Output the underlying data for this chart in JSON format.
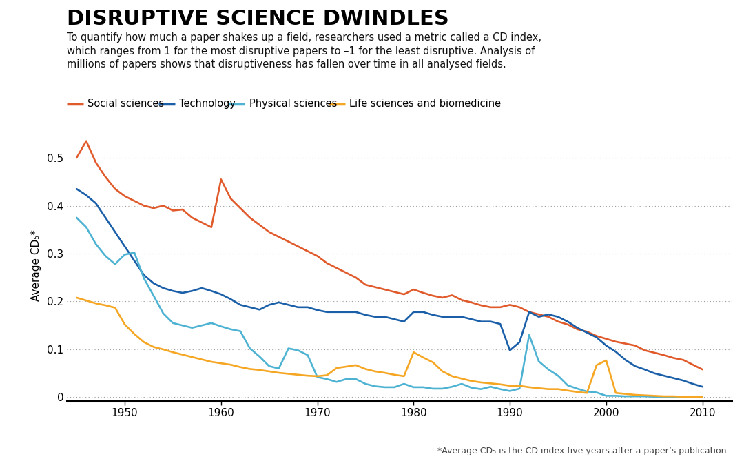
{
  "title": "DISRUPTIVE SCIENCE DWINDLES",
  "subtitle": "To quantify how much a paper shakes up a field, researchers used a metric called a CD index,\nwhich ranges from 1 for the most disruptive papers to –1 for the least disruptive. Analysis of\nmillions of papers shows that disruptiveness has fallen over time in all analysed fields.",
  "footnote": "*Average CD₅ is the CD index five years after a paper’s publication.",
  "ylabel": "Average CD₅*",
  "ylim": [
    -0.008,
    0.56
  ],
  "yticks": [
    0,
    0.1,
    0.2,
    0.3,
    0.4,
    0.5
  ],
  "xlim": [
    1944,
    2013
  ],
  "xticks": [
    1950,
    1960,
    1970,
    1980,
    1990,
    2000,
    2010
  ],
  "background_color": "#ffffff",
  "grid_color": "#999999",
  "series": [
    {
      "label": "Social sciences",
      "color": "#e05a2b",
      "years": [
        1945,
        1946,
        1947,
        1948,
        1949,
        1950,
        1951,
        1952,
        1953,
        1954,
        1955,
        1956,
        1957,
        1958,
        1959,
        1960,
        1961,
        1962,
        1963,
        1964,
        1965,
        1966,
        1967,
        1968,
        1969,
        1970,
        1971,
        1972,
        1973,
        1974,
        1975,
        1976,
        1977,
        1978,
        1979,
        1980,
        1981,
        1982,
        1983,
        1984,
        1985,
        1986,
        1987,
        1988,
        1989,
        1990,
        1991,
        1992,
        1993,
        1994,
        1995,
        1996,
        1997,
        1998,
        1999,
        2000,
        2001,
        2002,
        2003,
        2004,
        2005,
        2006,
        2007,
        2008,
        2009,
        2010
      ],
      "values": [
        0.5,
        0.535,
        0.49,
        0.46,
        0.435,
        0.42,
        0.41,
        0.4,
        0.395,
        0.4,
        0.39,
        0.392,
        0.375,
        0.365,
        0.355,
        0.455,
        0.415,
        0.395,
        0.375,
        0.36,
        0.345,
        0.335,
        0.325,
        0.315,
        0.305,
        0.295,
        0.28,
        0.27,
        0.26,
        0.25,
        0.235,
        0.23,
        0.225,
        0.22,
        0.215,
        0.225,
        0.218,
        0.212,
        0.208,
        0.213,
        0.203,
        0.198,
        0.192,
        0.188,
        0.188,
        0.193,
        0.188,
        0.178,
        0.173,
        0.168,
        0.158,
        0.152,
        0.142,
        0.137,
        0.128,
        0.122,
        0.116,
        0.112,
        0.108,
        0.098,
        0.093,
        0.088,
        0.082,
        0.078,
        0.068,
        0.058
      ]
    },
    {
      "label": "Technology",
      "color": "#1a5fa8",
      "years": [
        1945,
        1946,
        1947,
        1948,
        1949,
        1950,
        1951,
        1952,
        1953,
        1954,
        1955,
        1956,
        1957,
        1958,
        1959,
        1960,
        1961,
        1962,
        1963,
        1964,
        1965,
        1966,
        1967,
        1968,
        1969,
        1970,
        1971,
        1972,
        1973,
        1974,
        1975,
        1976,
        1977,
        1978,
        1979,
        1980,
        1981,
        1982,
        1983,
        1984,
        1985,
        1986,
        1987,
        1988,
        1989,
        1990,
        1991,
        1992,
        1993,
        1994,
        1995,
        1996,
        1997,
        1998,
        1999,
        2000,
        2001,
        2002,
        2003,
        2004,
        2005,
        2006,
        2007,
        2008,
        2009,
        2010
      ],
      "values": [
        0.435,
        0.422,
        0.405,
        0.375,
        0.345,
        0.315,
        0.285,
        0.255,
        0.238,
        0.228,
        0.222,
        0.218,
        0.222,
        0.228,
        0.222,
        0.215,
        0.205,
        0.193,
        0.188,
        0.183,
        0.193,
        0.198,
        0.193,
        0.188,
        0.188,
        0.182,
        0.178,
        0.178,
        0.178,
        0.178,
        0.172,
        0.168,
        0.168,
        0.163,
        0.158,
        0.178,
        0.178,
        0.172,
        0.168,
        0.168,
        0.168,
        0.163,
        0.158,
        0.158,
        0.153,
        0.098,
        0.115,
        0.178,
        0.168,
        0.173,
        0.168,
        0.158,
        0.145,
        0.135,
        0.125,
        0.108,
        0.095,
        0.078,
        0.065,
        0.058,
        0.05,
        0.045,
        0.04,
        0.035,
        0.028,
        0.022
      ]
    },
    {
      "label": "Physical sciences",
      "color": "#4eb3d3",
      "years": [
        1945,
        1946,
        1947,
        1948,
        1949,
        1950,
        1951,
        1952,
        1953,
        1954,
        1955,
        1956,
        1957,
        1958,
        1959,
        1960,
        1961,
        1962,
        1963,
        1964,
        1965,
        1966,
        1967,
        1968,
        1969,
        1970,
        1971,
        1972,
        1973,
        1974,
        1975,
        1976,
        1977,
        1978,
        1979,
        1980,
        1981,
        1982,
        1983,
        1984,
        1985,
        1986,
        1987,
        1988,
        1989,
        1990,
        1991,
        1992,
        1993,
        1994,
        1995,
        1996,
        1997,
        1998,
        1999,
        2000,
        2001,
        2002,
        2003,
        2004,
        2005,
        2006,
        2007,
        2008,
        2009,
        2010
      ],
      "values": [
        0.375,
        0.355,
        0.32,
        0.295,
        0.278,
        0.298,
        0.302,
        0.248,
        0.212,
        0.175,
        0.155,
        0.15,
        0.145,
        0.15,
        0.155,
        0.148,
        0.142,
        0.138,
        0.102,
        0.085,
        0.065,
        0.06,
        0.102,
        0.098,
        0.088,
        0.042,
        0.038,
        0.032,
        0.038,
        0.038,
        0.028,
        0.023,
        0.021,
        0.021,
        0.028,
        0.021,
        0.021,
        0.018,
        0.018,
        0.022,
        0.028,
        0.02,
        0.017,
        0.022,
        0.017,
        0.013,
        0.018,
        0.13,
        0.075,
        0.058,
        0.045,
        0.025,
        0.018,
        0.012,
        0.01,
        0.003,
        0.003,
        0.002,
        0.002,
        0.002,
        0.001,
        0.001,
        0.001,
        0.001,
        0.0,
        0.0
      ]
    },
    {
      "label": "Life sciences and biomedicine",
      "color": "#f5a623",
      "years": [
        1945,
        1946,
        1947,
        1948,
        1949,
        1950,
        1951,
        1952,
        1953,
        1954,
        1955,
        1956,
        1957,
        1958,
        1959,
        1960,
        1961,
        1962,
        1963,
        1964,
        1965,
        1966,
        1967,
        1968,
        1969,
        1970,
        1971,
        1972,
        1973,
        1974,
        1975,
        1976,
        1977,
        1978,
        1979,
        1980,
        1981,
        1982,
        1983,
        1984,
        1985,
        1986,
        1987,
        1988,
        1989,
        1990,
        1991,
        1992,
        1993,
        1994,
        1995,
        1996,
        1997,
        1998,
        1999,
        2000,
        2001,
        2002,
        2003,
        2004,
        2005,
        2006,
        2007,
        2008,
        2009,
        2010
      ],
      "values": [
        0.208,
        0.202,
        0.196,
        0.192,
        0.187,
        0.152,
        0.132,
        0.115,
        0.105,
        0.1,
        0.094,
        0.089,
        0.084,
        0.079,
        0.074,
        0.071,
        0.068,
        0.063,
        0.059,
        0.057,
        0.054,
        0.051,
        0.049,
        0.047,
        0.045,
        0.044,
        0.046,
        0.061,
        0.064,
        0.067,
        0.059,
        0.054,
        0.051,
        0.047,
        0.044,
        0.094,
        0.083,
        0.073,
        0.054,
        0.044,
        0.039,
        0.034,
        0.031,
        0.029,
        0.027,
        0.024,
        0.024,
        0.021,
        0.019,
        0.017,
        0.017,
        0.014,
        0.011,
        0.009,
        0.067,
        0.077,
        0.009,
        0.007,
        0.005,
        0.004,
        0.003,
        0.002,
        0.002,
        0.001,
        0.001,
        0.0
      ]
    }
  ]
}
